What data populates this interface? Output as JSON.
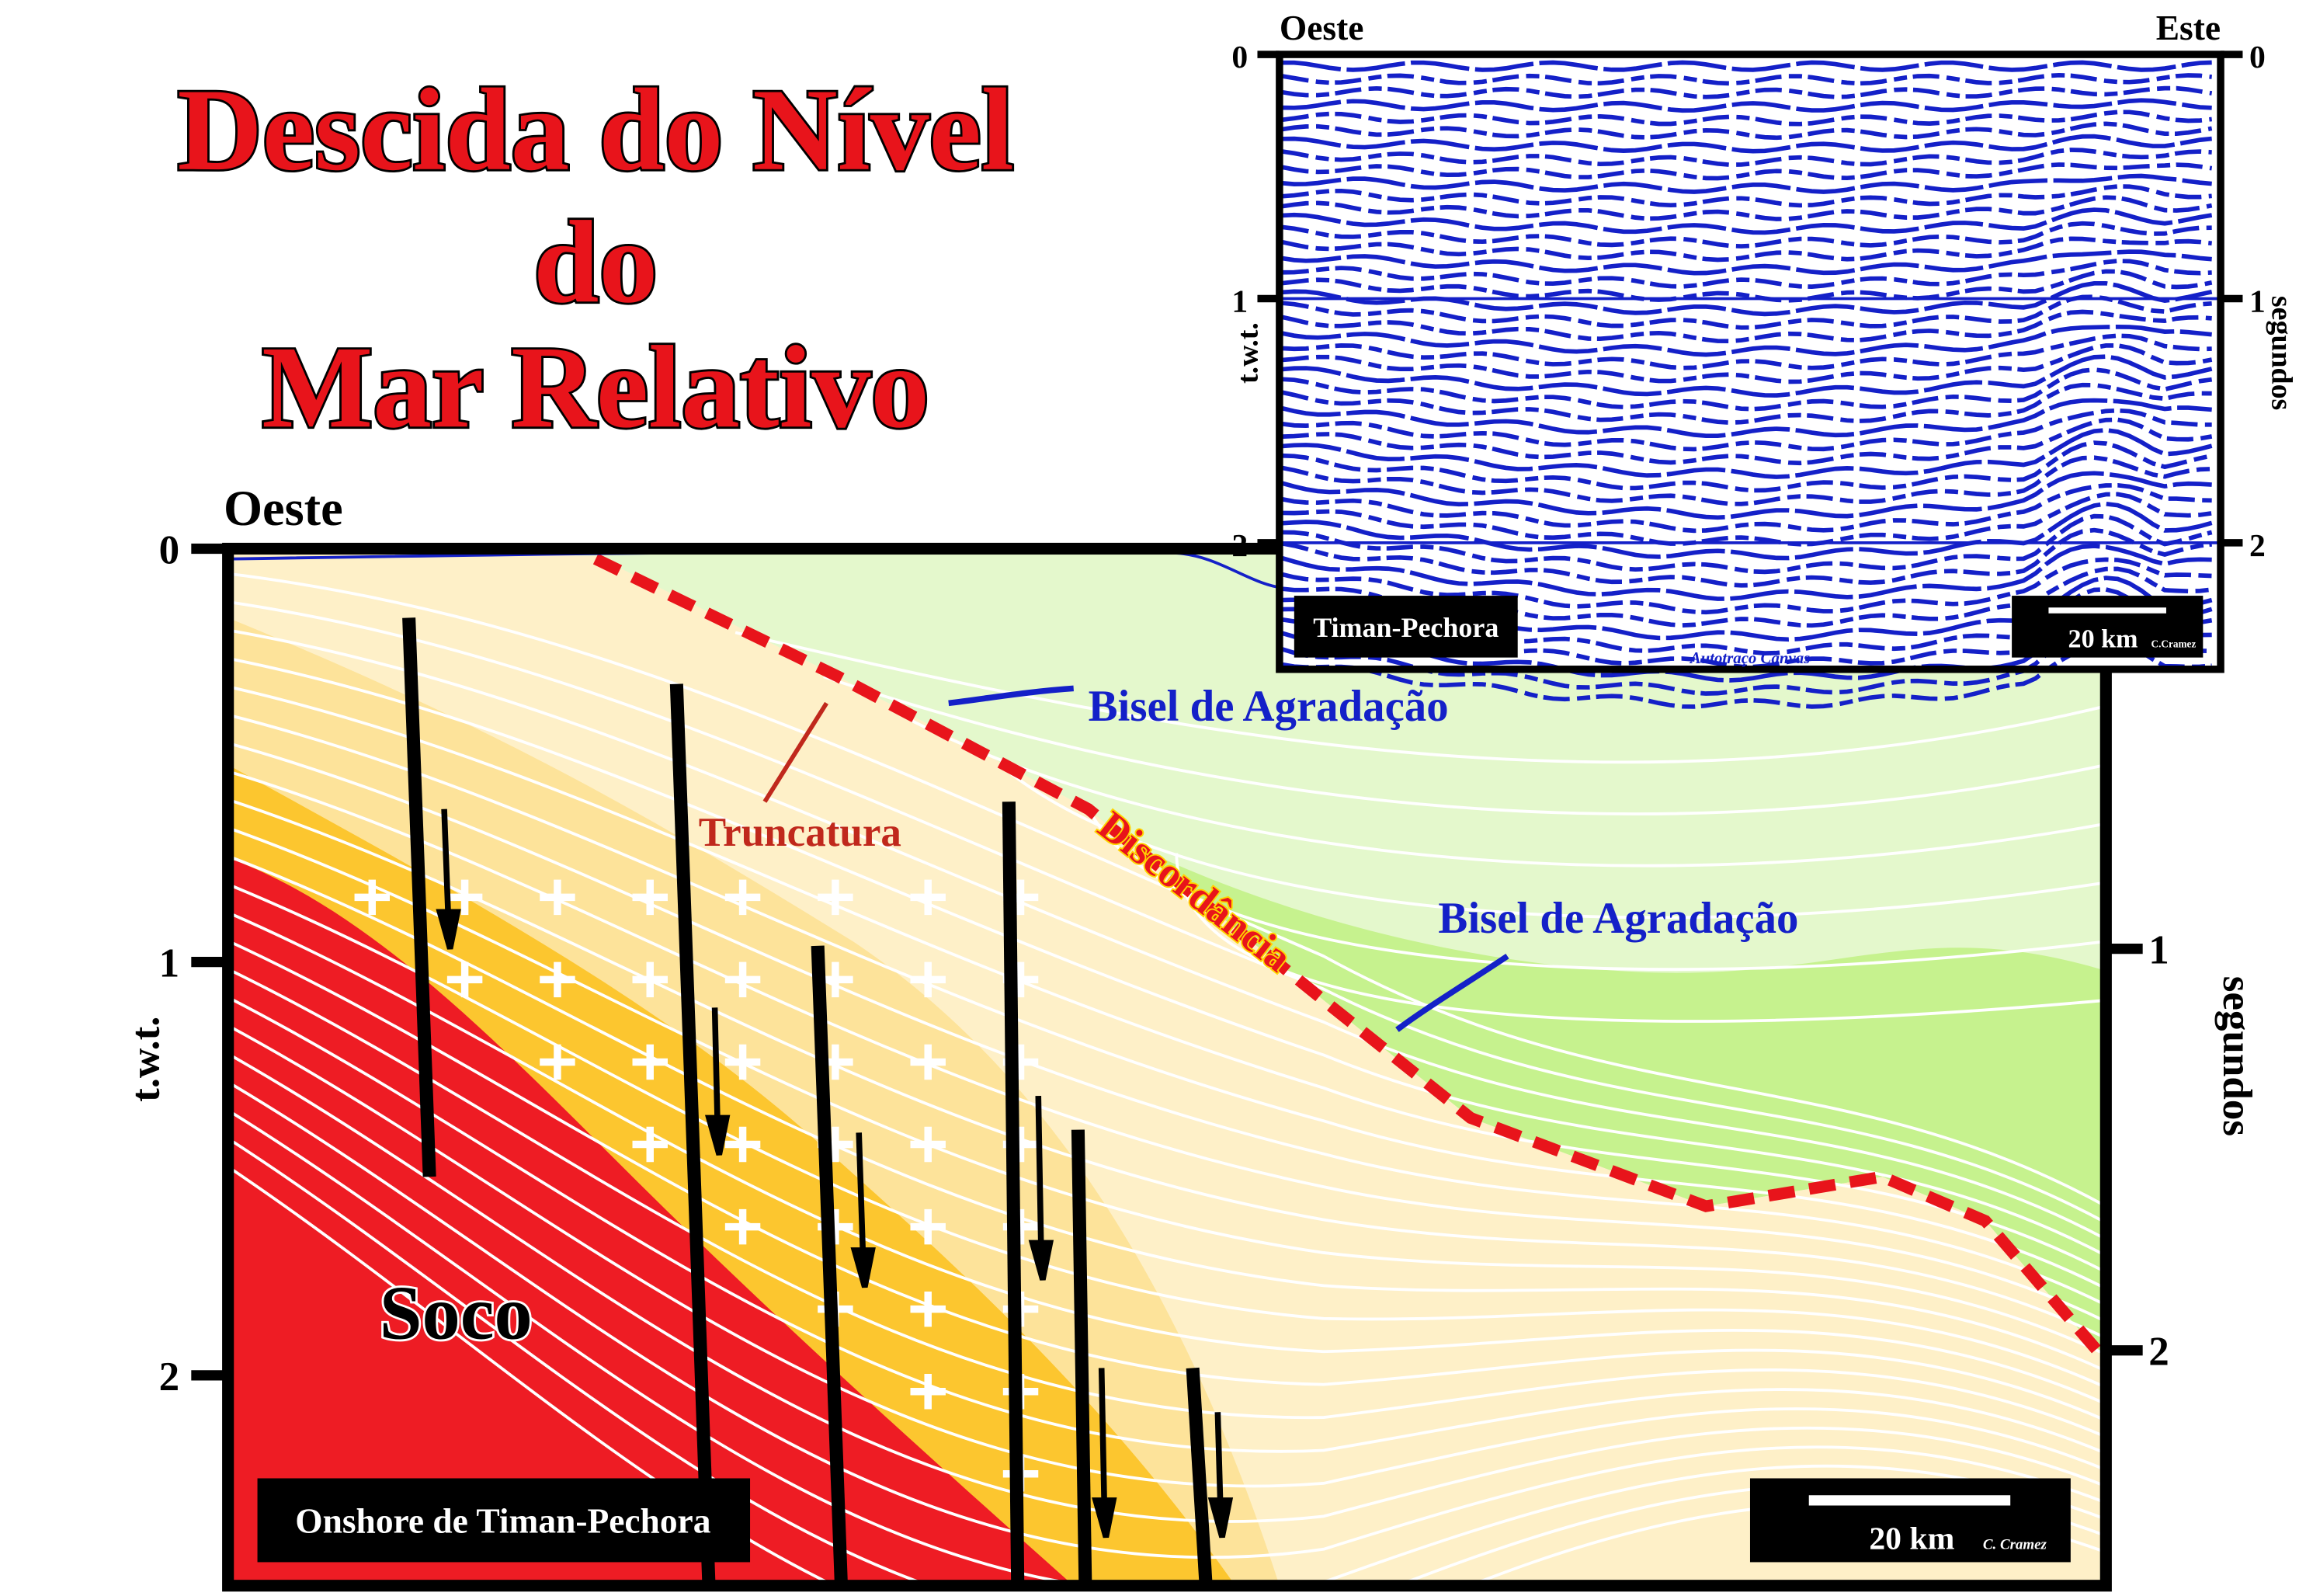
{
  "title": [
    "Descida do Nível",
    "do",
    "Mar Relativo"
  ],
  "main_section": {
    "west_label": "Oeste",
    "y_axis_left": "t.w.t.",
    "y_axis_right": "segundos",
    "ticks_left": [
      "0",
      "1",
      "2"
    ],
    "ticks_right": [
      "1",
      "2"
    ],
    "annotations": {
      "toplap_upper": "Bisel de Agradação",
      "toplap_lower": "Bisel de Agradação",
      "truncation": "Truncatura",
      "unconformity": "Discordância"
    },
    "basement": "Soco",
    "location": "Onshore de Timan-Pechora",
    "scale": "20 km",
    "credit": "C. Cramez"
  },
  "inset": {
    "west_label": "Oeste",
    "east_label": "Este",
    "ticks_left": [
      "0",
      "1",
      "2"
    ],
    "ticks_right": [
      "0",
      "1",
      "2"
    ],
    "y_axis_left": "t.w.t.",
    "y_axis_right": "segundos",
    "location": "Timan-Pechora",
    "scale": "20 km",
    "credit": "C.Cramez",
    "watermark": "Autotraço Canvas"
  }
}
